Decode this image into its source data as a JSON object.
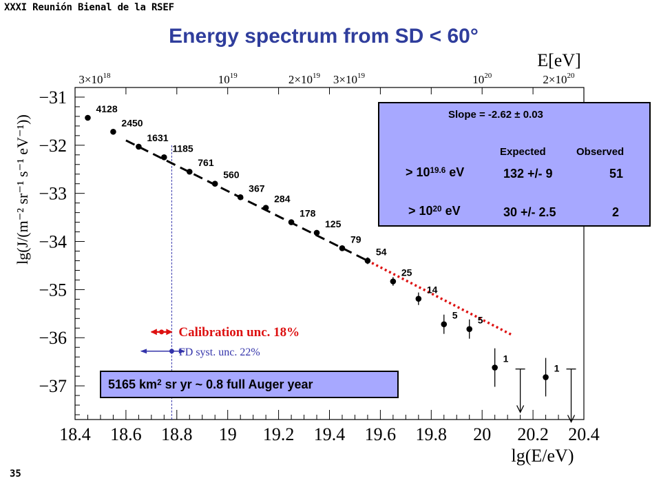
{
  "header": {
    "conference": "XXXI Reunión Bienal de la RSEF",
    "title": "Energy spectrum from SD < 60°",
    "page_number": "35"
  },
  "colors": {
    "title": "#2f3d9c",
    "box_fill": "#a7a8ff",
    "calibration": "#dd1111",
    "fd_syst": "#3333aa"
  },
  "info_box": {
    "slope": "Slope = -2.62 ± 0.03",
    "col_expected": "Expected",
    "col_observed": "Observed",
    "row1_base": "> 10",
    "row1_exp": "19.6",
    "row1_unit": " eV",
    "row1_expected": "132 +/- 9",
    "row1_observed": "51",
    "row2_base": "> 10",
    "row2_exp": "20",
    "row2_unit": " eV",
    "row2_expected": "30 +/- 2.5",
    "row2_observed": "2"
  },
  "exposure": {
    "pre": "5165 km",
    "sup": "2",
    "post": " sr yr  ~ 0.8 full Auger year"
  },
  "chart_data": {
    "type": "scatter",
    "xlabel": "lg(E/eV)",
    "ylabel": "lg(J/(m⁻² sr⁻¹ s⁻¹ eV⁻¹))",
    "top_axis_label": "E[eV]",
    "xlim": [
      18.4,
      20.4
    ],
    "ylim": [
      -37.7,
      -30.8
    ],
    "x_ticks": [
      "18.4",
      "18.6",
      "18.8",
      "19",
      "19.2",
      "19.4",
      "19.6",
      "19.8",
      "20",
      "20.2",
      "20.4"
    ],
    "y_ticks": [
      "-31",
      "-32",
      "-33",
      "-34",
      "-35",
      "-36",
      "-37"
    ],
    "top_ticks": [
      {
        "value": 18.477,
        "base": "3×10",
        "exp": "18"
      },
      {
        "value": 19.0,
        "base": "10",
        "exp": "19"
      },
      {
        "value": 19.301,
        "base": "2×10",
        "exp": "19"
      },
      {
        "value": 19.477,
        "base": "3×10",
        "exp": "19"
      },
      {
        "value": 20.0,
        "base": "10",
        "exp": "20"
      },
      {
        "value": 20.301,
        "base": "2×10",
        "exp": "20"
      }
    ],
    "points": [
      {
        "x": 18.45,
        "y": -31.43,
        "err": 0,
        "label": "4128"
      },
      {
        "x": 18.55,
        "y": -31.72,
        "err": 0,
        "label": "2450"
      },
      {
        "x": 18.65,
        "y": -32.03,
        "err": 0,
        "label": "1631"
      },
      {
        "x": 18.75,
        "y": -32.25,
        "err": 0,
        "label": "1185"
      },
      {
        "x": 18.85,
        "y": -32.55,
        "err": 0,
        "label": "761"
      },
      {
        "x": 18.95,
        "y": -32.8,
        "err": 0,
        "label": "560"
      },
      {
        "x": 19.05,
        "y": -33.08,
        "err": 0,
        "label": "367"
      },
      {
        "x": 19.15,
        "y": -33.3,
        "err": 0,
        "label": "284"
      },
      {
        "x": 19.25,
        "y": -33.6,
        "err": 0.03,
        "label": "178"
      },
      {
        "x": 19.35,
        "y": -33.82,
        "err": 0.04,
        "label": "125"
      },
      {
        "x": 19.45,
        "y": -34.14,
        "err": 0.05,
        "label": "79"
      },
      {
        "x": 19.55,
        "y": -34.4,
        "err": 0.07,
        "label": "54"
      },
      {
        "x": 19.65,
        "y": -34.83,
        "err": 0.09,
        "label": "25"
      },
      {
        "x": 19.75,
        "y": -35.19,
        "err": 0.13,
        "label": "14"
      },
      {
        "x": 19.85,
        "y": -35.72,
        "err": 0.2,
        "label": "5"
      },
      {
        "x": 19.95,
        "y": -35.82,
        "err": 0.2,
        "label": "5"
      },
      {
        "x": 20.05,
        "y": -36.62,
        "err": 0.4,
        "label": "1"
      },
      {
        "x": 20.25,
        "y": -36.82,
        "err": 0.4,
        "label": "1"
      }
    ],
    "upper_limits": [
      {
        "x": 20.15,
        "y_from": -36.65,
        "y_to": -37.55
      },
      {
        "x": 20.35,
        "y_from": -36.65,
        "y_to": -37.75
      }
    ],
    "fit_line": {
      "x": [
        18.6,
        19.55
      ],
      "y": [
        -31.9,
        -34.4
      ]
    },
    "extrapolation": {
      "x": [
        19.55,
        20.12
      ],
      "y": [
        -34.4,
        -35.95
      ]
    },
    "reference_vline": {
      "x": 18.78,
      "y_from": -32.0,
      "y_to": -37.7
    },
    "calibration": {
      "label": "Calibration unc. 18%",
      "x_from": 18.7,
      "x_to": 18.78,
      "y": -35.88
    },
    "fd_syst": {
      "label": "FD syst. unc. 22%",
      "x_from": 18.66,
      "x_to": 18.83,
      "y": -36.28
    }
  }
}
